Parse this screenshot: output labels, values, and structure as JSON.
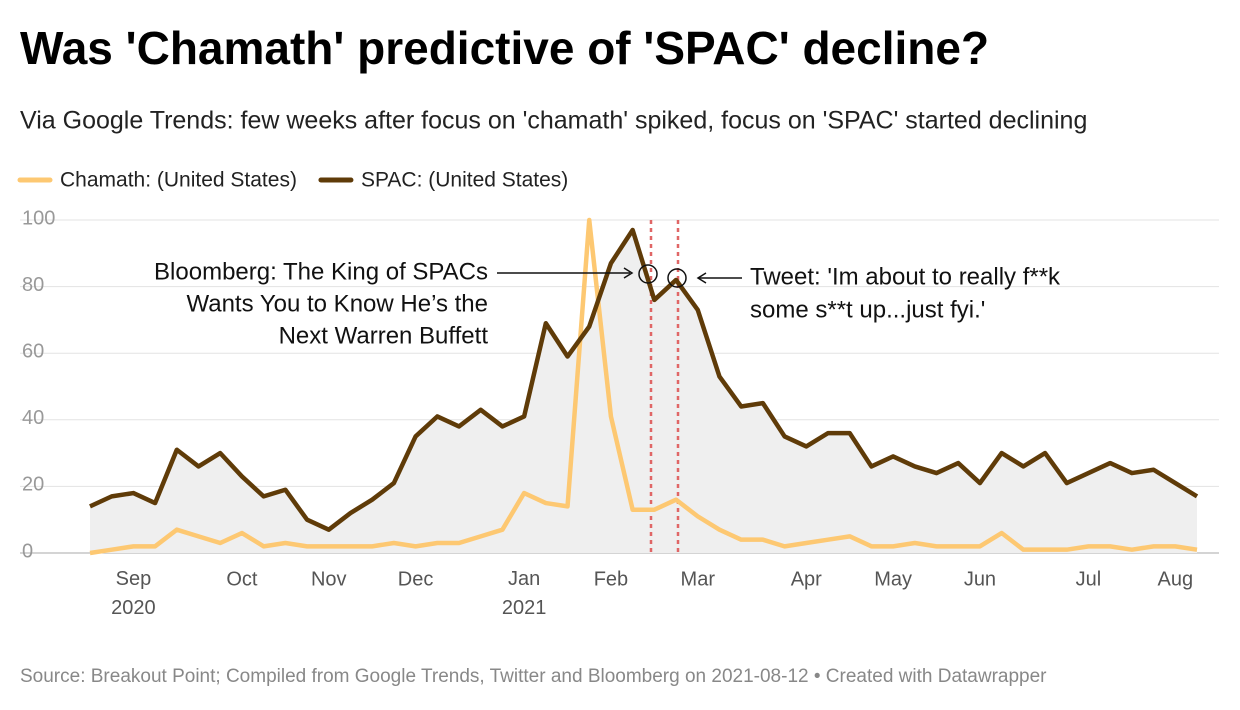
{
  "chart_data": {
    "type": "line",
    "title": "Was 'Chamath' predictive of 'SPAC' decline?",
    "subtitle": "Via Google Trends: few weeks after focus on 'chamath' spiked, focus on 'SPAC' started declining",
    "source": "Source: Breakout Point; Compiled from Google Trends, Twitter and Bloomberg on 2021-08-12 • Created with Datawrapper",
    "categories": [
      null,
      null,
      "Sep 2020",
      null,
      null,
      null,
      null,
      "Oct",
      null,
      null,
      null,
      "Nov",
      null,
      null,
      null,
      "Dec",
      null,
      null,
      null,
      null,
      "Jan 2021",
      null,
      null,
      null,
      "Feb",
      null,
      null,
      null,
      "Mar",
      null,
      null,
      null,
      null,
      "Apr",
      null,
      null,
      null,
      "May",
      null,
      null,
      null,
      "Jun",
      null,
      null,
      null,
      null,
      "Jul",
      null,
      null,
      null,
      "Aug",
      null
    ],
    "series": [
      {
        "name": "Chamath: (United States)",
        "color": "#fdc872",
        "values": [
          0,
          1,
          2,
          2,
          7,
          5,
          3,
          6,
          2,
          3,
          2,
          2,
          2,
          2,
          3,
          2,
          3,
          3,
          5,
          7,
          18,
          15,
          14,
          100,
          41,
          13,
          13,
          16,
          11,
          7,
          4,
          4,
          2,
          3,
          4,
          5,
          2,
          2,
          3,
          2,
          2,
          2,
          6,
          1,
          1,
          1,
          2,
          2,
          1,
          2,
          2,
          1
        ]
      },
      {
        "name": "SPAC: (United States)",
        "color": "#5f3b08",
        "values": [
          14,
          17,
          18,
          15,
          31,
          26,
          30,
          23,
          17,
          19,
          10,
          7,
          12,
          16,
          21,
          35,
          41,
          38,
          43,
          38,
          41,
          69,
          59,
          68,
          87,
          97,
          76,
          82,
          73,
          53,
          44,
          45,
          35,
          32,
          36,
          36,
          26,
          29,
          26,
          24,
          27,
          21,
          30,
          26,
          30,
          21,
          24,
          27,
          24,
          25,
          21,
          17
        ],
        "area": true
      }
    ],
    "area_color": "#efefef",
    "ylim": [
      0,
      100
    ],
    "yticks": [
      0,
      20,
      40,
      60,
      80,
      100
    ],
    "grid": true,
    "legend": "top-left",
    "annotations": [
      {
        "lines": [
          "Bloomberg: The King of SPACs",
          "Wants You to Know He’s the",
          "Next Warren Buffett"
        ]
      },
      {
        "lines": [
          "Tweet: 'Im about to really f**k",
          "some s**t up...just fyi.'"
        ]
      }
    ]
  }
}
